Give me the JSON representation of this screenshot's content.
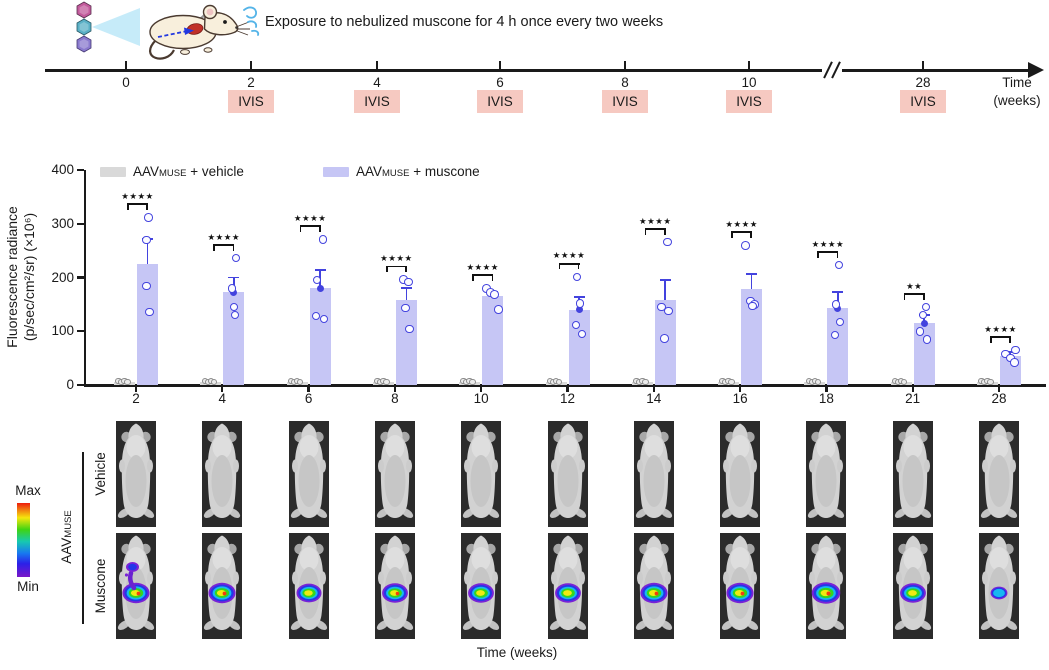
{
  "figure": {
    "caption": "Exposure to nebulized muscone for 4 h once every two weeks"
  },
  "timeline": {
    "weeks": [
      "0",
      "2",
      "4",
      "6",
      "8",
      "10",
      "28"
    ],
    "ivis_label": "IVIS",
    "ivis_at": [
      1,
      2,
      3,
      4,
      5,
      6
    ],
    "ivis_bg": "#f6c9c1",
    "axis_label_line1": "Time",
    "axis_label_line2": "(weeks)"
  },
  "legend": [
    {
      "prefix": "AAV",
      "sub": "MUSE",
      "rest": " + vehicle",
      "color": "#d9d9d9"
    },
    {
      "prefix": "AAV",
      "sub": "MUSE",
      "rest": " + muscone",
      "color": "#c6c6f5"
    }
  ],
  "chart_data": {
    "type": "bar",
    "title": "",
    "ylabel_line1": "Fluorescence radiance",
    "ylabel_line2": "(p/sec/cm²/sr) (×10⁶)",
    "xlabel": "Time (weeks)",
    "ylim": [
      0,
      400
    ],
    "yticks": [
      "0",
      "100",
      "200",
      "300",
      "400"
    ],
    "categories": [
      "2",
      "4",
      "6",
      "8",
      "10",
      "12",
      "14",
      "16",
      "18",
      "21",
      "28"
    ],
    "series": [
      {
        "name": "AAVMUSE + vehicle",
        "color": "#d9d9d9",
        "dot_color": "#8c8c8c",
        "values": [
          2,
          2,
          2,
          2,
          2,
          2,
          2,
          2,
          2,
          2,
          2
        ],
        "n_points": 4
      },
      {
        "name": "AAVMUSE + muscone",
        "color": "#c6c6f5",
        "point_color": "#4343de",
        "values": [
          225,
          173,
          180,
          158,
          165,
          140,
          158,
          178,
          143,
          115,
          54
        ],
        "sem": [
          47,
          27,
          34,
          22,
          8,
          24,
          37,
          28,
          30,
          15,
          7
        ],
        "points": [
          [
            312,
            270,
            184,
            136
          ],
          [
            236,
            180,
            145,
            130
          ],
          [
            271,
            195,
            128,
            123
          ],
          [
            196,
            192,
            143,
            104
          ],
          [
            180,
            172,
            168,
            141
          ],
          [
            201,
            152,
            112,
            95
          ],
          [
            266,
            145,
            138,
            87
          ],
          [
            260,
            156,
            150,
            147
          ],
          [
            223,
            150,
            117,
            93
          ],
          [
            145,
            130,
            100,
            85
          ],
          [
            65,
            58,
            50,
            42
          ]
        ],
        "mean_dot": [
          false,
          true,
          true,
          false,
          false,
          true,
          false,
          false,
          true,
          true,
          false
        ]
      }
    ],
    "significance": [
      "****",
      "****",
      "****",
      "****",
      "****",
      "****",
      "****",
      "****",
      "****",
      "**",
      "****"
    ]
  },
  "ivis_images": {
    "scale_max": "Max",
    "scale_min": "Min",
    "group_prefix": "AAV",
    "group_sub": "MUSE",
    "rows": [
      "Vehicle",
      "Muscone"
    ],
    "xlabel": "Time (weeks)",
    "columns": [
      {
        "week": "2",
        "blob_scale": 1.0,
        "blob_heat": 1.0,
        "chest_streak": true
      },
      {
        "week": "4",
        "blob_scale": 1.0,
        "blob_heat": 1.0
      },
      {
        "week": "6",
        "blob_scale": 0.92,
        "blob_heat": 0.85
      },
      {
        "week": "8",
        "blob_scale": 0.95,
        "blob_heat": 1.0
      },
      {
        "week": "10",
        "blob_scale": 0.95,
        "blob_heat": 0.9
      },
      {
        "week": "12",
        "blob_scale": 0.95,
        "blob_heat": 0.9
      },
      {
        "week": "14",
        "blob_scale": 1.0,
        "blob_heat": 1.0
      },
      {
        "week": "16",
        "blob_scale": 1.0,
        "blob_heat": 0.95
      },
      {
        "week": "18",
        "blob_scale": 1.05,
        "blob_heat": 1.0
      },
      {
        "week": "21",
        "blob_scale": 0.95,
        "blob_heat": 0.8
      },
      {
        "week": "28",
        "blob_scale": 0.62,
        "blob_heat": 0.35
      }
    ]
  }
}
